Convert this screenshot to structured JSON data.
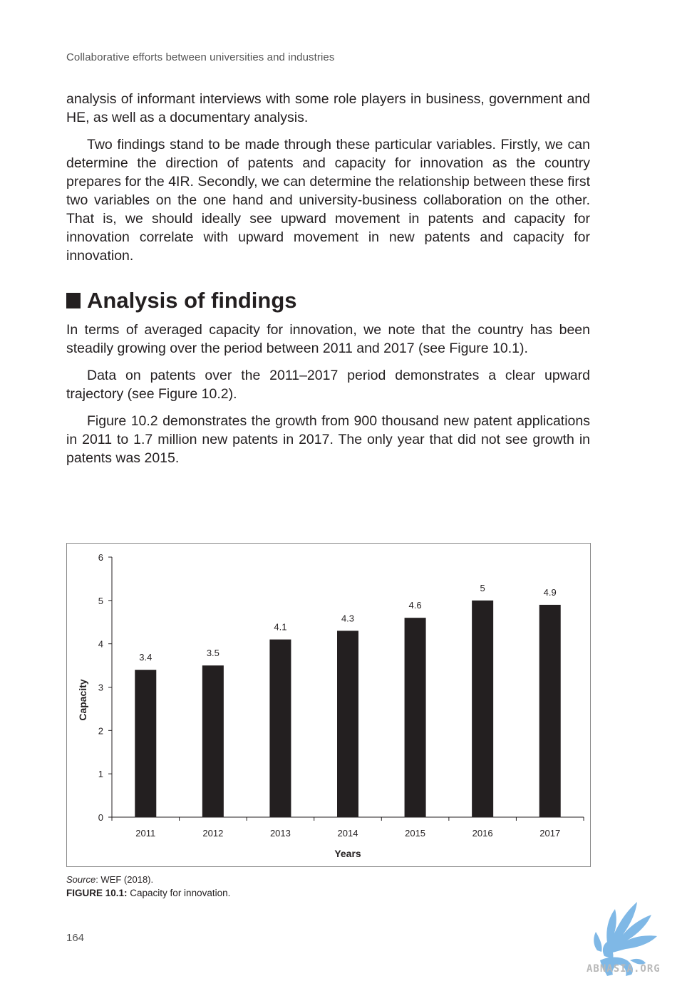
{
  "running_head": "Collaborative efforts between universities and industries",
  "paragraphs_top": [
    "analysis of informant interviews with some role players in business, government and HE, as well as a documentary analysis.",
    "Two findings stand to be made through these particular variables. Firstly, we can determine the direction of patents and capacity for innovation as the country prepares for the 4IR. Secondly, we can determine the relationship between these first two variables on the one hand and university-business collaboration on the other. That is, we should ideally see upward movement in patents and capacity for innovation correlate with upward movement in new patents and capacity for innovation."
  ],
  "section_heading": "Analysis of findings",
  "paragraphs_findings": [
    "In terms of averaged capacity for innovation, we note that the country has been steadily growing over the period between 2011 and 2017 (see Figure 10.1).",
    "Data on patents over the 2011–2017 period demonstrates a clear upward trajectory (see Figure 10.2).",
    "Figure 10.2 demonstrates the growth from 900 thousand new patent applications in 2011 to 1.7 million new patents in 2017. The only year that did not see growth in patents was 2015."
  ],
  "chart_data": {
    "type": "bar",
    "categories": [
      "2011",
      "2012",
      "2013",
      "2014",
      "2015",
      "2016",
      "2017"
    ],
    "values": [
      3.4,
      3.5,
      4.1,
      4.3,
      4.6,
      5,
      4.9
    ],
    "value_labels": [
      "3.4",
      "3.5",
      "4.1",
      "4.3",
      "4.6",
      "5",
      "4.9"
    ],
    "xlabel": "Years",
    "ylabel": "Capacity",
    "ylim": [
      0,
      6
    ],
    "yticks": [
      "0",
      "1",
      "2",
      "3",
      "4",
      "5",
      "6"
    ],
    "bar_color": "#231f20",
    "grid": false,
    "legend": "none"
  },
  "source": {
    "label": "Source",
    "text": ": WEF (2018)."
  },
  "caption": {
    "label": "FIGURE 10.1:",
    "text": " Capacity for innovation."
  },
  "page_number": "164",
  "watermark": {
    "icon": "griffin-logo-icon",
    "text": "ABNASIA.ORG",
    "color": "#7fb8e6"
  }
}
